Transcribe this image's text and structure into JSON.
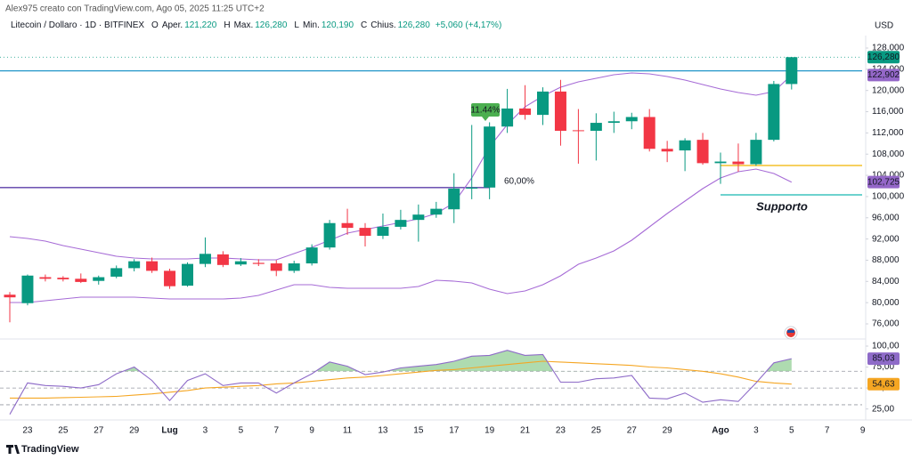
{
  "header": {
    "author": "Alex975 creato con TradingView.com, Ago 05, 2025 11:25 UTC+2",
    "symbol": "Litecoin / Dollaro · 1D · BITFINEX",
    "ohlc_legend": [
      {
        "key": "O",
        "name": "Aper.",
        "value": "121,220"
      },
      {
        "key": "H",
        "name": "Max.",
        "value": "126,280"
      },
      {
        "key": "L",
        "name": "Min.",
        "value": "120,190"
      },
      {
        "key": "C",
        "name": "Chius.",
        "value": "126,280"
      }
    ],
    "change": "+5,060 (+4,17%)",
    "currency": "USD"
  },
  "footer": {
    "brand": "TradingView"
  },
  "chart_data": {
    "type": "candlestick",
    "categories": [
      null,
      "23",
      null,
      "25",
      null,
      "27",
      null,
      "29",
      null,
      "Lug",
      null,
      "3",
      null,
      "5",
      null,
      "7",
      null,
      "9",
      null,
      "11",
      null,
      "13",
      null,
      "15",
      null,
      "17",
      null,
      "19",
      null,
      "21",
      null,
      "23",
      null,
      "25",
      null,
      "27",
      null,
      "29",
      null,
      null,
      "Ago",
      null,
      "3",
      null,
      "5",
      null,
      "7",
      null,
      "9"
    ],
    "ohlc": {
      "open": [
        81500,
        79900,
        84800,
        84700,
        84500,
        84100,
        84900,
        86500,
        87800,
        86000,
        83200,
        87300,
        89100,
        87200,
        87500,
        87400,
        86000,
        87400,
        90400,
        95000,
        94100,
        92600,
        94300,
        95600,
        96600,
        97600,
        101500,
        101700,
        113200,
        116600,
        115400,
        119800,
        112500,
        112400,
        113900,
        114200,
        115000,
        109000,
        108700,
        110700,
        106300,
        106600,
        106100,
        110700,
        121220,
        null,
        null,
        null,
        null
      ],
      "high": [
        82000,
        85300,
        85300,
        85000,
        85500,
        85100,
        87000,
        88200,
        88500,
        86400,
        87600,
        92300,
        89700,
        88400,
        88200,
        88000,
        87900,
        91000,
        95600,
        97700,
        95000,
        96800,
        97500,
        98500,
        99000,
        104400,
        113500,
        114000,
        120300,
        121000,
        120600,
        122000,
        116500,
        115700,
        116000,
        115800,
        116500,
        110500,
        111000,
        112000,
        108300,
        110000,
        112000,
        121800,
        126280,
        null,
        null,
        null,
        null
      ],
      "low": [
        76300,
        79500,
        84000,
        84000,
        83700,
        83400,
        84600,
        85900,
        85600,
        82600,
        83000,
        86700,
        86700,
        86900,
        86900,
        85000,
        85600,
        87000,
        90000,
        92800,
        90600,
        92000,
        93800,
        91500,
        96000,
        95000,
        99500,
        99500,
        112000,
        114500,
        113500,
        109600,
        106200,
        106800,
        112000,
        112700,
        108500,
        106500,
        104800,
        106000,
        102400,
        104700,
        105800,
        110400,
        120190,
        null,
        null,
        null,
        null
      ],
      "close": [
        81000,
        85100,
        84500,
        84400,
        83900,
        84800,
        86500,
        87800,
        86000,
        83100,
        87300,
        89200,
        87100,
        87800,
        87300,
        86000,
        87400,
        90400,
        95000,
        94100,
        92600,
        94300,
        95600,
        96600,
        97700,
        101500,
        101700,
        113200,
        116600,
        115400,
        119800,
        112400,
        112400,
        113900,
        114200,
        115000,
        109000,
        108500,
        110600,
        106300,
        106600,
        106100,
        110700,
        121220,
        126280,
        null,
        null,
        null,
        null
      ]
    },
    "up_color": "#089981",
    "down_color": "#f23645",
    "series": [
      {
        "color": "#a66bd6",
        "values": [
          92440,
          92100,
          91600,
          90760,
          90090,
          89420,
          88750,
          88410,
          88250,
          88250,
          88250,
          88410,
          88410,
          88250,
          88080,
          88080,
          89250,
          90430,
          91770,
          93110,
          93780,
          94450,
          95120,
          95790,
          96800,
          98810,
          103510,
          109380,
          113570,
          116930,
          118940,
          120620,
          121630,
          122300,
          122970,
          123300,
          123140,
          122630,
          121960,
          121120,
          120280,
          119610,
          119110,
          119800,
          122902,
          null,
          null,
          null,
          null
        ]
      },
      {
        "color": "#a66bd6",
        "values": [
          80030,
          80030,
          80360,
          80700,
          81030,
          81030,
          81030,
          81030,
          80870,
          80700,
          80700,
          80700,
          80700,
          80870,
          81370,
          82370,
          83380,
          83380,
          82880,
          82710,
          82710,
          82710,
          82710,
          83050,
          84220,
          84050,
          83720,
          82540,
          81700,
          82210,
          83380,
          85060,
          87240,
          88410,
          89750,
          91770,
          94280,
          96800,
          99150,
          101500,
          103510,
          104680,
          105190,
          104350,
          102725,
          null,
          null,
          null,
          null
        ]
      }
    ],
    "levels": [
      {
        "value": 123700,
        "color": "#2196c8"
      },
      {
        "value": 101700,
        "color": "#5b3ea8"
      },
      {
        "value": 105860,
        "color": "#f0b400"
      },
      {
        "value": 100320,
        "color": "#17b8b0"
      }
    ],
    "annotations": {
      "support": "Supporto",
      "gain": "11.44%",
      "fib": "60,00%"
    },
    "ylim": [
      73650,
      130350
    ],
    "yticks": [
      {
        "value": 76000,
        "label": "76,000"
      },
      {
        "value": 80000,
        "label": "80,000"
      },
      {
        "value": 84000,
        "label": "84,000"
      },
      {
        "value": 88000,
        "label": "88,000"
      },
      {
        "value": 92000,
        "label": "92,000"
      },
      {
        "value": 96000,
        "label": "96,000"
      },
      {
        "value": 100000,
        "label": "100,000"
      },
      {
        "value": 104000,
        "label": "104,000"
      },
      {
        "value": 108000,
        "label": "108,000"
      },
      {
        "value": 112000,
        "label": "112,000"
      },
      {
        "value": 116000,
        "label": "116,000"
      },
      {
        "value": 120000,
        "label": "120,000"
      },
      {
        "value": 124000,
        "label": "124,000"
      },
      {
        "value": 128000,
        "label": "128,000"
      }
    ],
    "price_labels": [
      {
        "value": 126280,
        "label": "126,280",
        "color": "#089981"
      },
      {
        "value": 122902,
        "label": "122,902",
        "color": "#9467c8"
      },
      {
        "value": 102725,
        "label": "102,725",
        "color": "#9467c8"
      }
    ],
    "grid": false,
    "rsi": {
      "ylim": [
        14,
        100
      ],
      "yticks": [
        {
          "value": 100,
          "label": "100,00"
        },
        {
          "value": 75,
          "label": "75,00"
        },
        {
          "value": 50,
          "label": "50,00"
        },
        {
          "value": 25,
          "label": "25,00"
        }
      ],
      "levels": [
        70,
        50,
        30
      ],
      "series": [
        {
          "color": "#8e6bc8",
          "values": [
            18.6,
            56,
            53,
            52,
            50,
            54,
            67,
            75,
            59,
            35,
            59,
            67,
            53,
            56,
            56,
            44,
            56,
            67,
            81,
            76,
            66,
            69,
            74,
            76,
            78,
            82,
            88,
            89,
            95,
            89,
            90,
            57,
            57,
            61,
            62,
            65,
            38,
            37,
            44,
            33,
            36,
            34,
            56,
            80,
            85.03,
            null,
            null,
            null,
            null
          ]
        },
        {
          "color": "#f5a623",
          "values": [
            38,
            38,
            38,
            38.5,
            39,
            39.5,
            40,
            41.5,
            43,
            45,
            47,
            50,
            51,
            52,
            53,
            55,
            56,
            58,
            60,
            62,
            63,
            65,
            67,
            69,
            71,
            72,
            74,
            76,
            78,
            80,
            82,
            81,
            80,
            79,
            78,
            77,
            75,
            74,
            72,
            70,
            67,
            63,
            58,
            56,
            54.63,
            null,
            null,
            null,
            null
          ]
        }
      ],
      "fill_color": "#4caf50",
      "price_labels": [
        {
          "value": 85.03,
          "label": "85,03",
          "color": "#8e6bc8"
        },
        {
          "value": 54.63,
          "label": "54,63",
          "color": "#f5a623"
        }
      ]
    }
  }
}
